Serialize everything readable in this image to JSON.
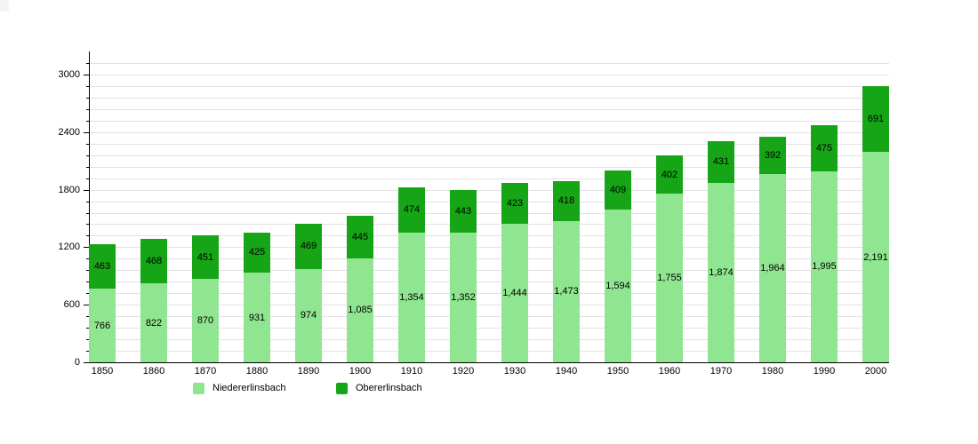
{
  "chart_data": {
    "type": "bar",
    "stacked": true,
    "title": "",
    "xlabel": "",
    "ylabel": "",
    "categories": [
      "1850",
      "1860",
      "1870",
      "1880",
      "1890",
      "1900",
      "1910",
      "1920",
      "1930",
      "1940",
      "1950",
      "1960",
      "1970",
      "1980",
      "1990",
      "2000"
    ],
    "series": [
      {
        "name": "Niedererlinsbach",
        "color": "#90e690",
        "values": [
          766,
          822,
          870,
          931,
          974,
          1085,
          1354,
          1352,
          1444,
          1473,
          1594,
          1755,
          1874,
          1964,
          1995,
          2191
        ],
        "labels": [
          "766",
          "822",
          "870",
          "931",
          "974",
          "1,085",
          "1,354",
          "1,352",
          "1,444",
          "1,473",
          "1,594",
          "1,755",
          "1,874",
          "1,964",
          "1,995",
          "2,191"
        ]
      },
      {
        "name": "Obererlinsbach",
        "color": "#16a516",
        "values": [
          463,
          468,
          451,
          425,
          469,
          445,
          474,
          443,
          423,
          418,
          409,
          402,
          431,
          392,
          475,
          691
        ],
        "labels": [
          "463",
          "468",
          "451",
          "425",
          "469",
          "445",
          "474",
          "443",
          "423",
          "418",
          "409",
          "402",
          "431",
          "392",
          "475",
          "691"
        ]
      }
    ],
    "ylim": [
      0,
      3240
    ],
    "y_major_tick_labels": [
      "0",
      "600",
      "1200",
      "1800",
      "2400",
      "3000"
    ],
    "y_major_step": 600,
    "y_minor_step": 120,
    "grid": true,
    "legend_position": "bottom"
  },
  "legend": {
    "items": [
      {
        "label": "Niedererlinsbach",
        "color": "#90e690"
      },
      {
        "label": "Obererlinsbach",
        "color": "#16a516"
      }
    ]
  },
  "colors": {
    "light_series": "#90e690",
    "dark_series": "#16a516",
    "gridline": "#e2e2e2",
    "axis": "#000000",
    "background": "#ffffff"
  }
}
